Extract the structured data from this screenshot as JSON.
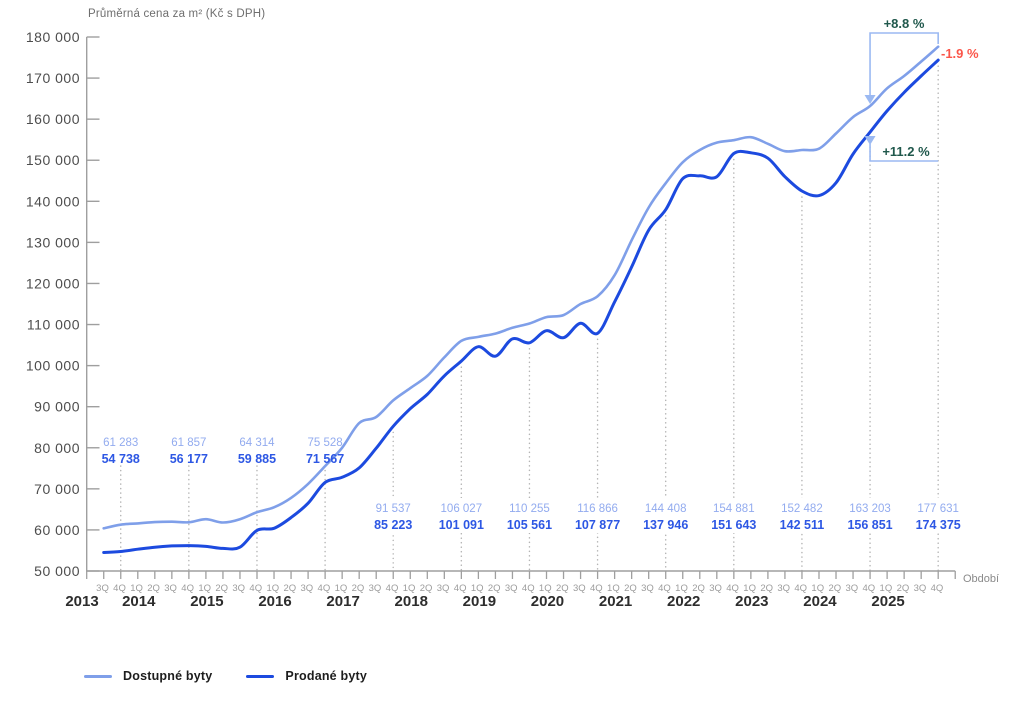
{
  "chart": {
    "title": "Průměrná cena za m² (Kč s DPH)",
    "x_axis_title": "Období",
    "legend": [
      {
        "label": "Dostupné byty",
        "series": "available"
      },
      {
        "label": "Prodané byty",
        "series": "sold"
      }
    ],
    "annotations": {
      "available_growth": "+8.8 %",
      "sold_growth": "+11.2 %",
      "price_gap": "-1.9 %"
    },
    "colors": {
      "available_line": "#7f9fe9",
      "sold_line": "#1c4adf",
      "available_label": "#92abef",
      "sold_label": "#2d57e4",
      "annotation_green": "#20584c",
      "annotation_red": "#fb5549",
      "bracket": "#9bb9f2",
      "dotted_guide": "#b4b4b4",
      "axis": "#9f9f9f",
      "y_tick_text": "#4d4d4d",
      "quarter_tick_text": "#9c9c9c",
      "year_text": "#2d2d2d",
      "title_text": "#6e6e6e"
    }
  },
  "chart_data": {
    "type": "line",
    "ylim": [
      50000,
      180000
    ],
    "ytick_step": 10000,
    "x_start": "3Q 2013",
    "x_end": "4Q 2025",
    "n_quarters": 50,
    "quarter_cycle_start": 3,
    "years": [
      "2013",
      "2014",
      "2015",
      "2016",
      "2017",
      "2018",
      "2019",
      "2020",
      "2021",
      "2022",
      "2023",
      "2024",
      "2025"
    ],
    "grid": false,
    "legend_position": "bottom-left",
    "series": [
      {
        "name": "Dostupné byty",
        "values": [
          60400,
          61283,
          61600,
          61900,
          62000,
          61857,
          62600,
          61800,
          62600,
          64314,
          65500,
          67800,
          71200,
          75528,
          80000,
          86000,
          87500,
          91537,
          94500,
          97500,
          102000,
          106027,
          107000,
          107800,
          109200,
          110255,
          111800,
          112300,
          115000,
          116866,
          122000,
          130500,
          138500,
          144408,
          149500,
          152500,
          154300,
          154881,
          155600,
          154000,
          152200,
          152482,
          152800,
          156500,
          160500,
          163203,
          167500,
          170500,
          174000,
          177631
        ]
      },
      {
        "name": "Prodané byty",
        "values": [
          54500,
          54738,
          55300,
          55800,
          56100,
          56177,
          56000,
          55500,
          55800,
          59885,
          60400,
          63000,
          66500,
          71567,
          72800,
          75100,
          79900,
          85223,
          89500,
          93000,
          97500,
          101091,
          104600,
          102300,
          106500,
          105561,
          108500,
          106800,
          110300,
          107877,
          115500,
          124000,
          133000,
          137946,
          145500,
          146200,
          146000,
          151643,
          151800,
          150500,
          146000,
          142511,
          141400,
          144500,
          151500,
          156851,
          162000,
          166500,
          170500,
          174375
        ]
      }
    ],
    "labeled_quarters": [
      {
        "label": "4Q 2013",
        "available": 61283,
        "sold": 54738
      },
      {
        "label": "4Q 2014",
        "available": 61857,
        "sold": 56177
      },
      {
        "label": "4Q 2015",
        "available": 64314,
        "sold": 59885
      },
      {
        "label": "4Q 2016",
        "available": 75528,
        "sold": 71567
      },
      {
        "label": "4Q 2017",
        "available": 91537,
        "sold": 85223
      },
      {
        "label": "4Q 2018",
        "available": 106027,
        "sold": 101091
      },
      {
        "label": "4Q 2019",
        "available": 110255,
        "sold": 105561
      },
      {
        "label": "4Q 2020",
        "available": 116866,
        "sold": 107877
      },
      {
        "label": "4Q 2021",
        "available": 144408,
        "sold": 137946
      },
      {
        "label": "4Q 2022",
        "available": 154881,
        "sold": 151643
      },
      {
        "label": "4Q 2023",
        "available": 152482,
        "sold": 142511
      },
      {
        "label": "4Q 2024",
        "available": 163203,
        "sold": 156851
      },
      {
        "label": "4Q 2025",
        "available": 177631,
        "sold": 174375
      }
    ]
  }
}
